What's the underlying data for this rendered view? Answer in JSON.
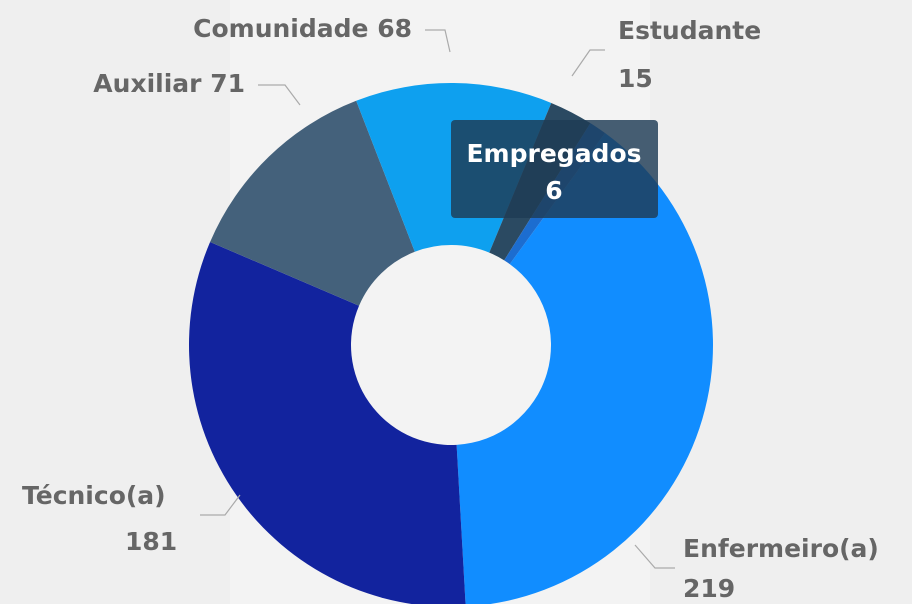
{
  "chart_data": {
    "type": "donut",
    "categories": [
      "Enfermeiro(a)",
      "Técnico(a)",
      "Auxiliar",
      "Comunidade",
      "Estudante",
      "Empregados"
    ],
    "values": [
      219,
      181,
      71,
      68,
      15,
      6
    ],
    "colors": [
      "#118dff",
      "#12239e",
      "#44617b",
      "#0ea0ef",
      "#2b4a62",
      "#1c6dd0"
    ]
  }
}
